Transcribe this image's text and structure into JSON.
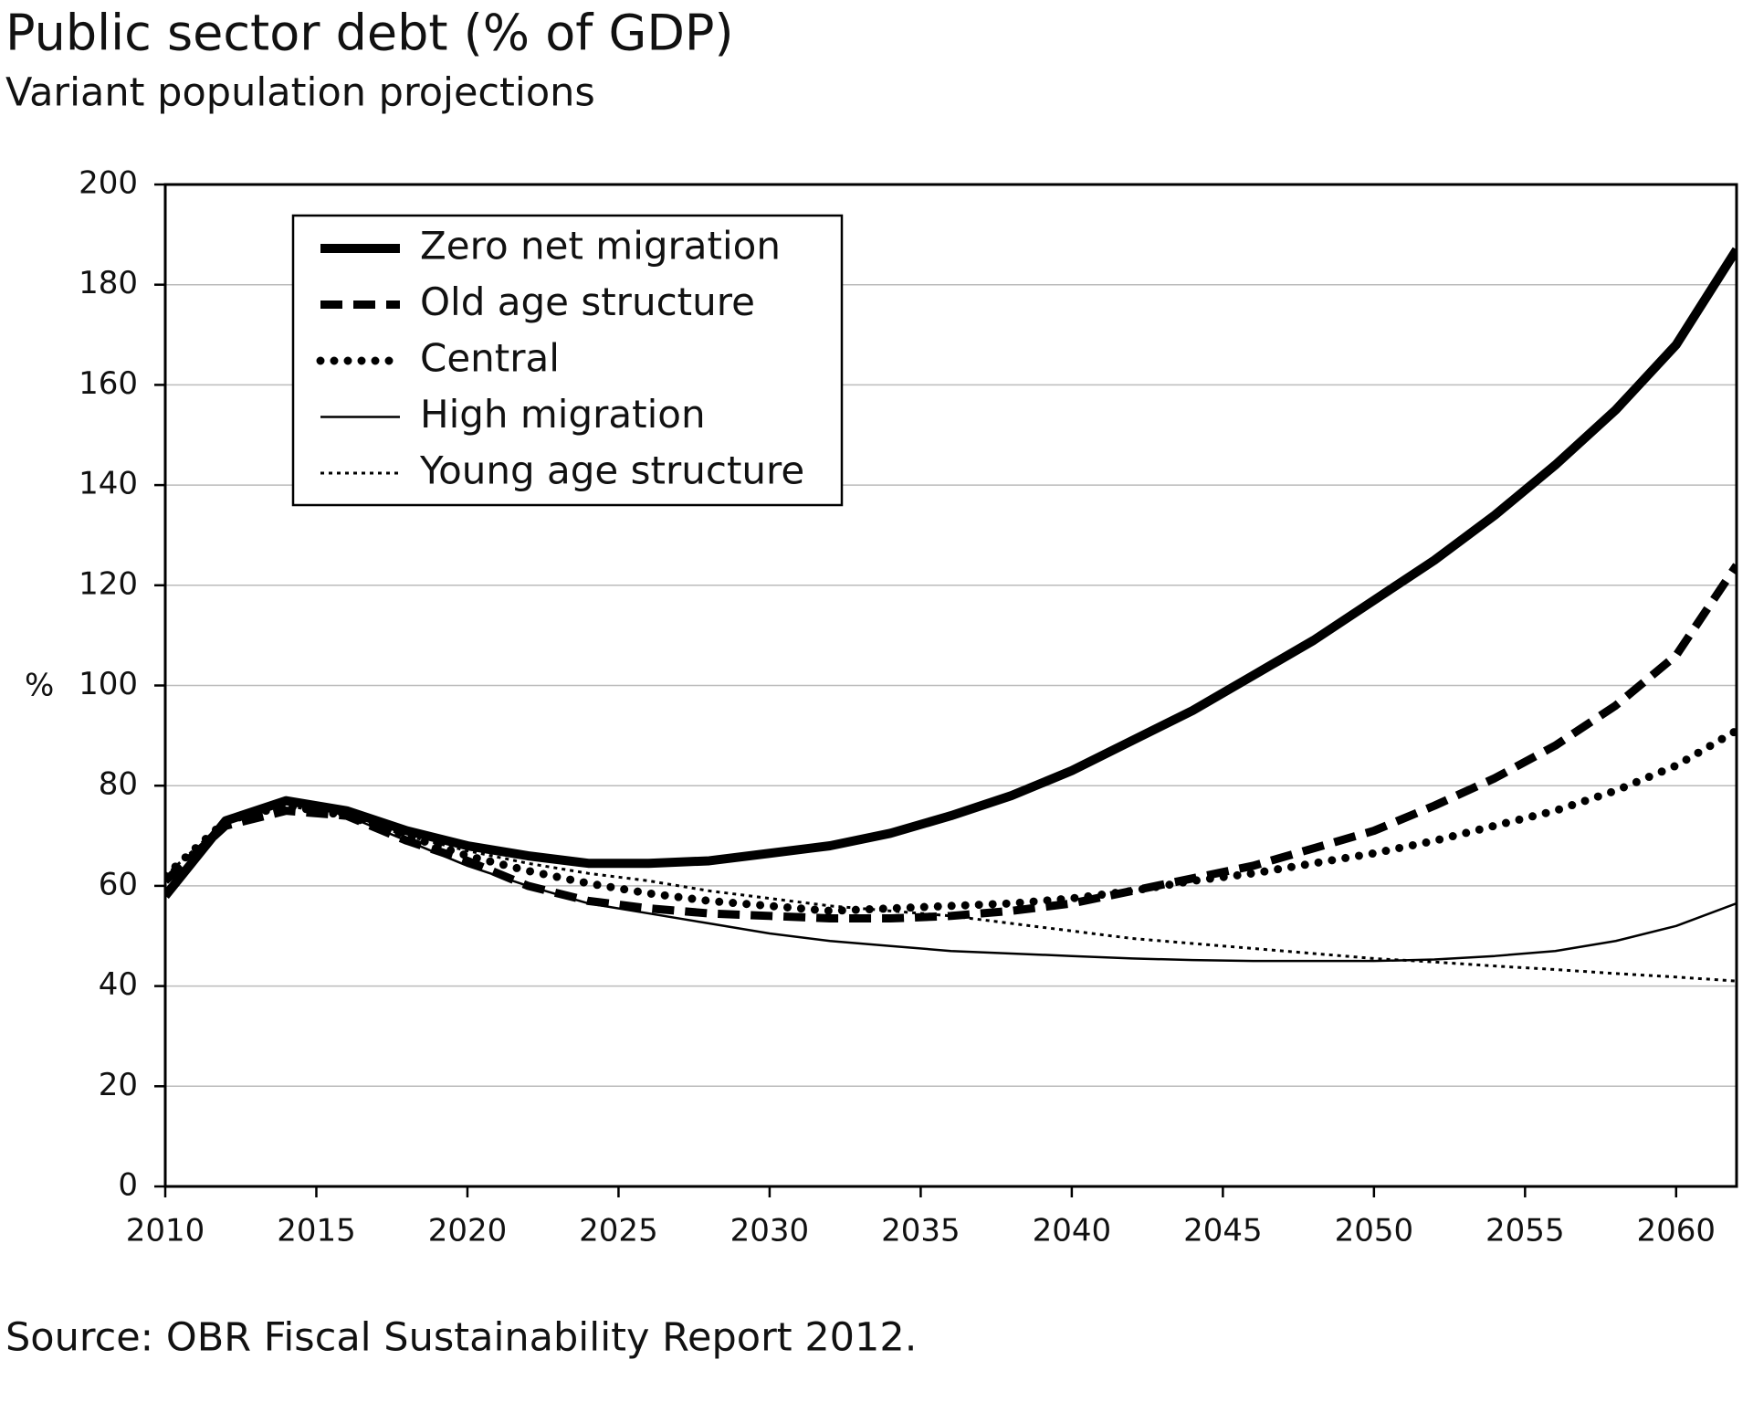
{
  "chart_data": {
    "type": "line",
    "title": "Public sector debt (% of GDP)",
    "subtitle": "Variant population projections",
    "y_label": "%",
    "source": "Source: OBR Fiscal Sustainability Report 2012.",
    "x": [
      2010,
      2012,
      2014,
      2016,
      2018,
      2020,
      2022,
      2024,
      2026,
      2028,
      2030,
      2032,
      2034,
      2036,
      2038,
      2040,
      2042,
      2044,
      2046,
      2048,
      2050,
      2052,
      2054,
      2056,
      2058,
      2060,
      2062
    ],
    "xlim": [
      2010,
      2062
    ],
    "xticks": [
      2010,
      2015,
      2020,
      2025,
      2030,
      2035,
      2040,
      2045,
      2050,
      2055,
      2060
    ],
    "ylim": [
      0,
      200
    ],
    "yticks": [
      0,
      20,
      40,
      60,
      80,
      100,
      120,
      140,
      160,
      180,
      200
    ],
    "grid": true,
    "legend": "upper left",
    "series": [
      {
        "name": "Zero net migration",
        "color": "#000000",
        "line_style": "thick",
        "values": [
          58,
          73,
          77,
          75,
          71,
          68,
          66,
          64.5,
          64.5,
          65,
          66.5,
          68,
          70.5,
          74,
          78,
          83,
          89,
          95,
          102,
          109,
          117,
          125,
          134,
          144,
          155,
          168,
          187
        ]
      },
      {
        "name": "Old age structure",
        "color": "#000000",
        "line_style": "dashed",
        "values": [
          61,
          72,
          75,
          74,
          69,
          65,
          60,
          57,
          55.5,
          54.5,
          54,
          53.5,
          53.5,
          54,
          55,
          56.5,
          59,
          61.5,
          64,
          67.5,
          71,
          76,
          81.5,
          88,
          96,
          106,
          124
        ]
      },
      {
        "name": "Central",
        "color": "#000000",
        "line_style": "dotted",
        "values": [
          62,
          73,
          76,
          74,
          70,
          66,
          63,
          60.5,
          58.5,
          57,
          56,
          55,
          55.5,
          56,
          56.5,
          57.5,
          59,
          61,
          62.5,
          64.5,
          66.5,
          69,
          72,
          75,
          79,
          84,
          91
        ]
      },
      {
        "name": "High migration",
        "color": "#000000",
        "line_style": "thin",
        "values": [
          59,
          73,
          77,
          74,
          69,
          64,
          60,
          56.5,
          54.5,
          52.5,
          50.5,
          49,
          48,
          47,
          46.5,
          46,
          45.5,
          45.2,
          45,
          45,
          45,
          45.3,
          46,
          47,
          49,
          52,
          56.5
        ]
      },
      {
        "name": "Young age structure",
        "color": "#000000",
        "line_style": "fine-dotted",
        "values": [
          62,
          73,
          76,
          74,
          70,
          67,
          64.5,
          62.5,
          61,
          59,
          57.5,
          56,
          55,
          54,
          52.5,
          51,
          49.5,
          48.5,
          47.5,
          46.5,
          45.5,
          44.8,
          44,
          43.3,
          42.5,
          41.8,
          41
        ]
      }
    ]
  }
}
